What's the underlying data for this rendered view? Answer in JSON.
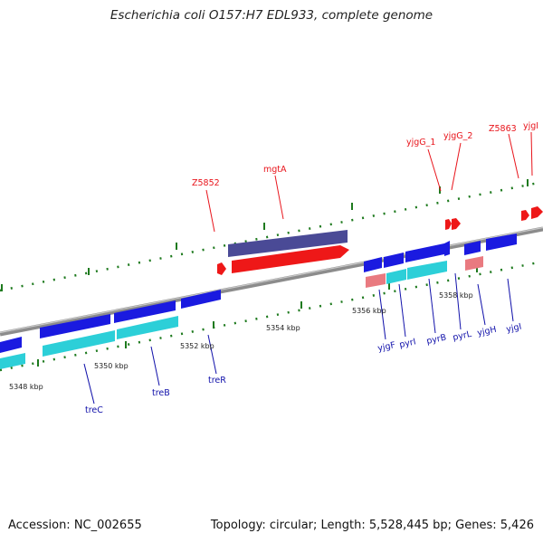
{
  "title": "Escherichia coli O157:H7 EDL933, complete genome",
  "footer": {
    "accession": "Accession: NC_002655",
    "summary": "Topology: circular; Length: 5,528,445 bp; Genes: 5,426"
  },
  "ticks": [
    "5348 kbp",
    "5350 kbp",
    "5352 kbp",
    "5354 kbp",
    "5356 kbp",
    "5358 kbp"
  ],
  "upper_labels": [
    "Z5852",
    "mgtA",
    "yjgG_1",
    "yjgG_2",
    "Z5863",
    "yjgI"
  ],
  "lower_labels": [
    "treC",
    "treB",
    "treR",
    "yjgF",
    "pyrI",
    "pyrB",
    "pyrL",
    "yjgH",
    "yjgI"
  ],
  "colors": {
    "backbone": "#8c8c8c",
    "tick_dots": "#1e7a1e",
    "gene_blue": "#1a1ae0",
    "gene_cyan": "#2ccfd8",
    "gene_red": "#ee1818",
    "gene_purple": "#4a4a96",
    "gene_pink": "#e97a80"
  }
}
